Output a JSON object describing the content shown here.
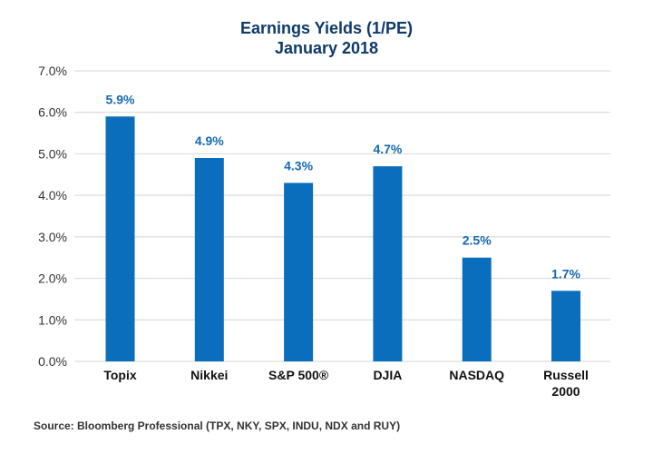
{
  "chart_data": {
    "type": "bar",
    "title": "Earnings Yields (1/PE)",
    "subtitle": "January 2018",
    "xlabel": "",
    "ylabel": "",
    "categories": [
      "Topix",
      "Nikkei",
      "S&P 500®",
      "DJIA",
      "NASDAQ",
      "Russell 2000"
    ],
    "category_lines": [
      [
        "Topix"
      ],
      [
        "Nikkei"
      ],
      [
        "S&P 500®"
      ],
      [
        "DJIA"
      ],
      [
        "NASDAQ"
      ],
      [
        "Russell",
        "2000"
      ]
    ],
    "values": [
      5.9,
      4.9,
      4.3,
      4.7,
      2.5,
      1.7
    ],
    "data_labels": [
      "5.9%",
      "4.9%",
      "4.3%",
      "4.7%",
      "2.5%",
      "1.7%"
    ],
    "ylim": [
      0,
      7
    ],
    "yticks": [
      0,
      1,
      2,
      3,
      4,
      5,
      6,
      7
    ],
    "ytick_labels": [
      "0.0%",
      "1.0%",
      "2.0%",
      "3.0%",
      "4.0%",
      "5.0%",
      "6.0%",
      "7.0%"
    ],
    "grid": true,
    "legend": "none",
    "colors": {
      "bar": "#0a6ebd",
      "data_label": "#1569b2",
      "title": "#0e3a6b",
      "grid": "#dddddd"
    },
    "source": "Source: Bloomberg Professional (TPX, NKY, SPX, INDU, NDX and RUY)"
  }
}
